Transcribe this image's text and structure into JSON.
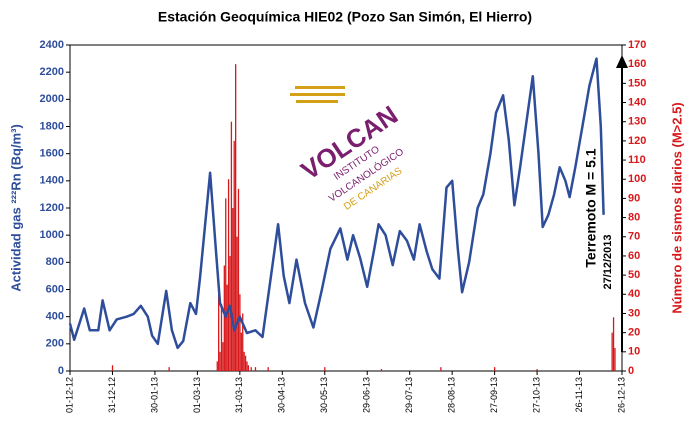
{
  "chart_data": {
    "type": "combo",
    "title": "Estación Geoquímica HIE02 (Pozo San Simón, El Hierro)",
    "y_label": "Actividad gas ²²²Rn (Bq/m³)",
    "y2_label": "Número de sismos diarios (M>2.5)",
    "annotations": [
      "Terremoto M = 5.1",
      "27/12/2013"
    ],
    "logo": [
      "VOLCAN",
      "INSTITUTO",
      "VOLCANOLÓGICO",
      "DE CANARIAS"
    ],
    "xlim": [
      0,
      390
    ],
    "xticks": [
      {
        "value": 0,
        "label": "01-12-12"
      },
      {
        "value": 30,
        "label": "31-12-12"
      },
      {
        "value": 60,
        "label": "30-01-13"
      },
      {
        "value": 90,
        "label": "01-03-13"
      },
      {
        "value": 120,
        "label": "31-03-13"
      },
      {
        "value": 150,
        "label": "30-04-13"
      },
      {
        "value": 180,
        "label": "30-05-13"
      },
      {
        "value": 210,
        "label": "29-06-13"
      },
      {
        "value": 240,
        "label": "29-07-13"
      },
      {
        "value": 270,
        "label": "28-08-13"
      },
      {
        "value": 300,
        "label": "27-09-13"
      },
      {
        "value": 330,
        "label": "27-10-13"
      },
      {
        "value": 360,
        "label": "26-11-13"
      },
      {
        "value": 390,
        "label": "26-12-13"
      }
    ],
    "ylim": [
      0,
      2400
    ],
    "yticks": [
      0,
      200,
      400,
      600,
      800,
      1000,
      1200,
      1400,
      1600,
      1800,
      2000,
      2200,
      2400
    ],
    "y2lim": [
      0,
      170
    ],
    "y2ticks": [
      0,
      10,
      20,
      30,
      40,
      50,
      60,
      70,
      80,
      90,
      100,
      110,
      120,
      130,
      140,
      150,
      160,
      170
    ],
    "series": [
      {
        "type": "bar",
        "axis": "y2",
        "color": "#d7191c",
        "x": [
          30,
          70,
          104,
          105,
          106,
          107,
          108,
          109,
          110,
          111,
          112,
          113,
          114,
          115,
          116,
          117,
          118,
          119,
          120,
          121,
          122,
          123,
          124,
          125,
          126,
          128,
          131,
          140,
          180,
          220,
          262,
          300,
          330,
          383,
          384,
          385
        ],
        "values": [
          3,
          2,
          5,
          40,
          10,
          35,
          15,
          55,
          90,
          45,
          100,
          60,
          130,
          85,
          120,
          160,
          70,
          95,
          40,
          20,
          30,
          10,
          8,
          5,
          3,
          2,
          2,
          2,
          2,
          1,
          2,
          2,
          1,
          20,
          28,
          12
        ]
      },
      {
        "type": "line",
        "axis": "y",
        "color": "#2e4d9a",
        "x": [
          0,
          3,
          10,
          14,
          20,
          23,
          28,
          33,
          40,
          45,
          50,
          55,
          58,
          62,
          68,
          72,
          76,
          80,
          85,
          89,
          92,
          99,
          103,
          106,
          110,
          113,
          116,
          120,
          125,
          131,
          136,
          142,
          147,
          151,
          155,
          160,
          166,
          172,
          178,
          184,
          191,
          196,
          200,
          205,
          210,
          215,
          218,
          223,
          228,
          233,
          238,
          243,
          247,
          252,
          256,
          261,
          266,
          270,
          274,
          277,
          282,
          288,
          292,
          297,
          301,
          306,
          310,
          314,
          318,
          322,
          327,
          331,
          334,
          338,
          342,
          346,
          350,
          353,
          357,
          362,
          367,
          372,
          375,
          377
        ],
        "values": [
          350,
          230,
          460,
          300,
          300,
          520,
          300,
          380,
          400,
          420,
          480,
          400,
          260,
          200,
          590,
          300,
          170,
          220,
          500,
          420,
          700,
          1460,
          900,
          500,
          400,
          480,
          300,
          400,
          280,
          300,
          250,
          700,
          1080,
          700,
          500,
          820,
          500,
          320,
          600,
          900,
          1050,
          820,
          1000,
          830,
          620,
          900,
          1080,
          1000,
          780,
          1030,
          960,
          820,
          1080,
          880,
          750,
          680,
          1350,
          1400,
          900,
          580,
          800,
          1200,
          1300,
          1600,
          1900,
          2030,
          1700,
          1220,
          1500,
          1800,
          2170,
          1600,
          1060,
          1150,
          1300,
          1500,
          1400,
          1280,
          1500,
          1800,
          2100,
          2300,
          1800,
          1150
        ]
      }
    ]
  }
}
